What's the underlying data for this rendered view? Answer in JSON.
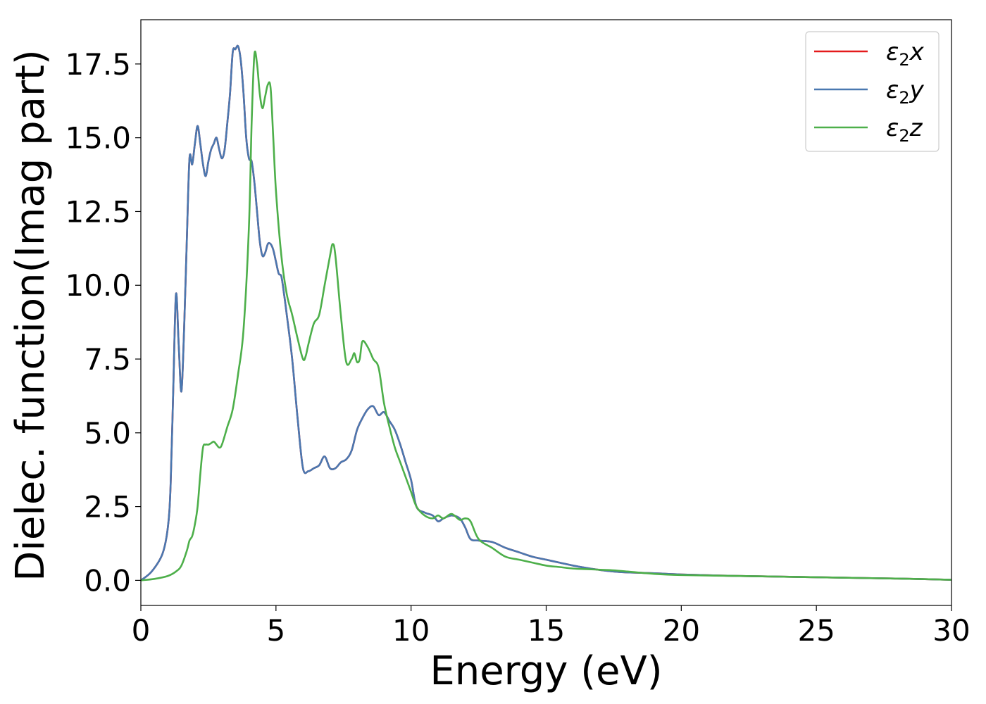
{
  "chart_data": {
    "type": "line",
    "title": "",
    "xlabel": "Energy (eV)",
    "ylabel": "Dielec. function(Imag part)",
    "xlim": [
      0,
      30
    ],
    "ylim": [
      -0.85,
      19.0
    ],
    "xticks": [
      "0",
      "5",
      "10",
      "15",
      "20",
      "25",
      "30"
    ],
    "yticks": [
      "0.0",
      "2.5",
      "5.0",
      "7.5",
      "10.0",
      "12.5",
      "15.0",
      "17.5"
    ],
    "grid": false,
    "legend_position": "top-right",
    "series": [
      {
        "name": "ε₂x",
        "legend_main": "ε",
        "legend_sub": "2",
        "legend_tail": "x",
        "color": "#e41a1c",
        "x": [
          0,
          0.4,
          0.8,
          1.0,
          1.1,
          1.2,
          1.3,
          1.4,
          1.5,
          1.6,
          1.7,
          1.8,
          1.9,
          2.0,
          2.1,
          2.2,
          2.3,
          2.4,
          2.5,
          2.6,
          2.7,
          2.8,
          2.9,
          3.0,
          3.1,
          3.2,
          3.3,
          3.4,
          3.5,
          3.6,
          3.7,
          3.8,
          3.9,
          4.0,
          4.1,
          4.2,
          4.3,
          4.4,
          4.5,
          4.6,
          4.7,
          4.8,
          4.9,
          5.0,
          5.1,
          5.2,
          5.3,
          5.4,
          5.6,
          5.8,
          6.0,
          6.2,
          6.4,
          6.6,
          6.8,
          7.0,
          7.2,
          7.4,
          7.6,
          7.8,
          8.0,
          8.2,
          8.4,
          8.6,
          8.8,
          9.0,
          9.2,
          9.4,
          9.6,
          9.8,
          10.0,
          10.2,
          10.5,
          10.8,
          11.0,
          11.2,
          11.5,
          11.8,
          12.0,
          12.2,
          12.5,
          13.0,
          13.5,
          14.0,
          14.5,
          15.0,
          15.5,
          16.0,
          16.5,
          17.0,
          17.5,
          18.0,
          19.0,
          20.0,
          22.0,
          24.0,
          26.0,
          28.0,
          30.0
        ],
        "y": [
          0.0,
          0.3,
          0.9,
          1.8,
          3.2,
          6.5,
          9.7,
          8.0,
          6.4,
          8.5,
          11.5,
          14.3,
          14.1,
          14.8,
          15.4,
          14.8,
          14.1,
          13.7,
          14.2,
          14.6,
          14.8,
          15.0,
          14.6,
          14.3,
          14.6,
          15.5,
          16.5,
          17.9,
          18.0,
          18.1,
          17.6,
          16.5,
          15.0,
          14.3,
          14.2,
          13.5,
          12.5,
          11.5,
          11.0,
          11.1,
          11.4,
          11.4,
          11.2,
          10.8,
          10.4,
          10.3,
          9.7,
          9.0,
          7.5,
          5.5,
          3.8,
          3.7,
          3.8,
          3.9,
          4.2,
          3.8,
          3.8,
          4.0,
          4.1,
          4.4,
          5.1,
          5.5,
          5.8,
          5.9,
          5.6,
          5.7,
          5.4,
          5.1,
          4.6,
          4.0,
          3.4,
          2.5,
          2.3,
          2.2,
          2.0,
          2.1,
          2.2,
          2.1,
          1.8,
          1.4,
          1.35,
          1.3,
          1.1,
          0.95,
          0.8,
          0.7,
          0.6,
          0.5,
          0.42,
          0.35,
          0.3,
          0.27,
          0.24,
          0.2,
          0.15,
          0.12,
          0.09,
          0.06,
          0.02
        ]
      },
      {
        "name": "ε₂y",
        "legend_main": "ε",
        "legend_sub": "2",
        "legend_tail": "y",
        "color": "#4a78b0",
        "x": [
          0,
          0.4,
          0.8,
          1.0,
          1.1,
          1.2,
          1.3,
          1.4,
          1.5,
          1.6,
          1.7,
          1.8,
          1.9,
          2.0,
          2.1,
          2.2,
          2.3,
          2.4,
          2.5,
          2.6,
          2.7,
          2.8,
          2.9,
          3.0,
          3.1,
          3.2,
          3.3,
          3.4,
          3.5,
          3.6,
          3.7,
          3.8,
          3.9,
          4.0,
          4.1,
          4.2,
          4.3,
          4.4,
          4.5,
          4.6,
          4.7,
          4.8,
          4.9,
          5.0,
          5.1,
          5.2,
          5.3,
          5.4,
          5.6,
          5.8,
          6.0,
          6.2,
          6.4,
          6.6,
          6.8,
          7.0,
          7.2,
          7.4,
          7.6,
          7.8,
          8.0,
          8.2,
          8.4,
          8.6,
          8.8,
          9.0,
          9.2,
          9.4,
          9.6,
          9.8,
          10.0,
          10.2,
          10.5,
          10.8,
          11.0,
          11.2,
          11.5,
          11.8,
          12.0,
          12.2,
          12.5,
          13.0,
          13.5,
          14.0,
          14.5,
          15.0,
          15.5,
          16.0,
          16.5,
          17.0,
          17.5,
          18.0,
          19.0,
          20.0,
          22.0,
          24.0,
          26.0,
          28.0,
          30.0
        ],
        "y": [
          0.0,
          0.3,
          0.9,
          1.8,
          3.2,
          6.5,
          9.7,
          8.0,
          6.4,
          8.5,
          11.5,
          14.3,
          14.1,
          14.8,
          15.4,
          14.8,
          14.1,
          13.7,
          14.2,
          14.6,
          14.8,
          15.0,
          14.6,
          14.3,
          14.6,
          15.5,
          16.5,
          17.9,
          18.0,
          18.1,
          17.6,
          16.5,
          15.0,
          14.3,
          14.2,
          13.5,
          12.5,
          11.5,
          11.0,
          11.1,
          11.4,
          11.4,
          11.2,
          10.8,
          10.4,
          10.3,
          9.7,
          9.0,
          7.5,
          5.5,
          3.8,
          3.7,
          3.8,
          3.9,
          4.2,
          3.8,
          3.8,
          4.0,
          4.1,
          4.4,
          5.1,
          5.5,
          5.8,
          5.9,
          5.6,
          5.7,
          5.4,
          5.1,
          4.6,
          4.0,
          3.4,
          2.5,
          2.3,
          2.2,
          2.0,
          2.1,
          2.2,
          2.1,
          1.8,
          1.4,
          1.35,
          1.3,
          1.1,
          0.95,
          0.8,
          0.7,
          0.6,
          0.5,
          0.42,
          0.35,
          0.3,
          0.27,
          0.24,
          0.2,
          0.15,
          0.12,
          0.09,
          0.06,
          0.02
        ]
      },
      {
        "name": "ε₂z",
        "legend_main": "ε",
        "legend_sub": "2",
        "legend_tail": "z",
        "color": "#4daf4a",
        "x": [
          0,
          0.5,
          1.0,
          1.3,
          1.5,
          1.7,
          1.8,
          1.9,
          2.0,
          2.1,
          2.2,
          2.3,
          2.4,
          2.5,
          2.6,
          2.7,
          2.8,
          2.9,
          3.0,
          3.2,
          3.4,
          3.6,
          3.8,
          4.0,
          4.1,
          4.2,
          4.3,
          4.4,
          4.5,
          4.6,
          4.7,
          4.8,
          4.9,
          5.0,
          5.2,
          5.4,
          5.6,
          5.8,
          6.0,
          6.1,
          6.2,
          6.4,
          6.6,
          6.8,
          7.0,
          7.1,
          7.2,
          7.4,
          7.6,
          7.8,
          7.9,
          8.0,
          8.1,
          8.2,
          8.4,
          8.6,
          8.8,
          9.0,
          9.2,
          9.4,
          9.6,
          9.8,
          10.0,
          10.2,
          10.5,
          10.8,
          11.0,
          11.2,
          11.5,
          11.8,
          12.0,
          12.2,
          12.5,
          13.0,
          13.5,
          14.0,
          14.5,
          15.0,
          15.5,
          16.0,
          16.5,
          17.0,
          17.5,
          18.0,
          19.0,
          20.0,
          22.0,
          24.0,
          26.0,
          28.0,
          30.0
        ],
        "y": [
          0.0,
          0.05,
          0.15,
          0.3,
          0.5,
          1.0,
          1.35,
          1.5,
          1.9,
          2.5,
          3.6,
          4.5,
          4.6,
          4.6,
          4.65,
          4.7,
          4.6,
          4.5,
          4.6,
          5.2,
          5.8,
          7.0,
          8.5,
          12.0,
          15.5,
          17.8,
          17.5,
          16.5,
          16.0,
          16.4,
          16.8,
          16.7,
          15.0,
          13.2,
          11.0,
          9.7,
          9.0,
          8.2,
          7.5,
          7.6,
          8.0,
          8.7,
          9.0,
          10.0,
          11.0,
          11.4,
          11.0,
          9.0,
          7.4,
          7.5,
          7.7,
          7.4,
          7.5,
          8.1,
          7.9,
          7.5,
          7.2,
          6.0,
          5.2,
          4.5,
          4.0,
          3.5,
          3.0,
          2.5,
          2.2,
          2.1,
          2.2,
          2.1,
          2.25,
          2.05,
          2.1,
          2.0,
          1.4,
          1.1,
          0.8,
          0.7,
          0.6,
          0.5,
          0.45,
          0.4,
          0.38,
          0.36,
          0.34,
          0.3,
          0.22,
          0.18,
          0.15,
          0.12,
          0.09,
          0.06,
          0.02
        ]
      }
    ]
  }
}
